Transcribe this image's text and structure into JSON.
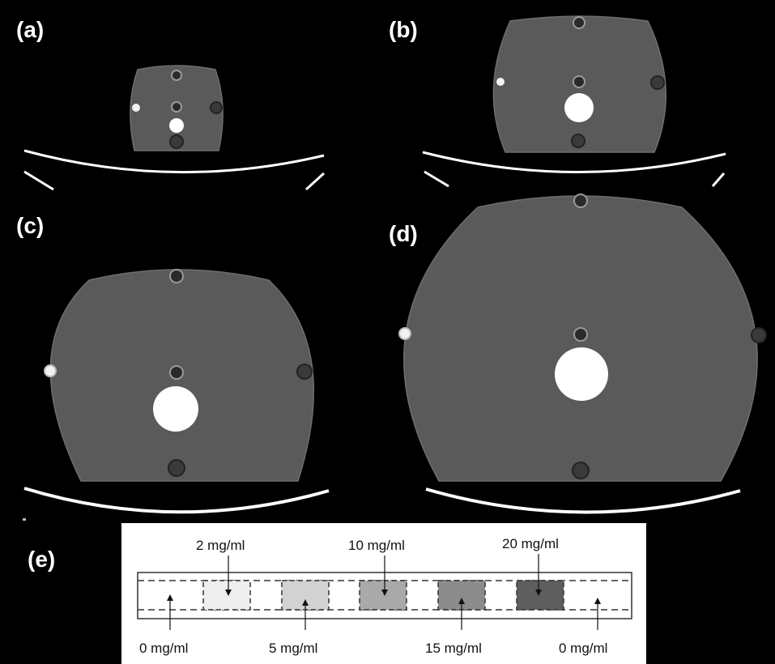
{
  "panels": {
    "a": {
      "label": "(a)"
    },
    "b": {
      "label": "(b)"
    },
    "c": {
      "label": "(c)"
    },
    "d": {
      "label": "(d)"
    },
    "e": {
      "label": "(e)"
    }
  },
  "colors": {
    "background": "#000000",
    "phantom": "#5a5a5a",
    "insert_bright": "#ffffff",
    "table_line": "#ffffff"
  },
  "insert_strip": {
    "top_labels": [
      "2 mg/ml",
      "10 mg/ml",
      "20 mg/ml"
    ],
    "bottom_labels": [
      "0 mg/ml",
      "5 mg/ml",
      "15 mg/ml",
      "0 mg/ml"
    ],
    "concentrations": [
      {
        "value": 2,
        "color": "#eeeeee"
      },
      {
        "value": 5,
        "color": "#d2d2d2"
      },
      {
        "value": 10,
        "color": "#a9a9a9"
      },
      {
        "value": 15,
        "color": "#8c8c8c"
      },
      {
        "value": 20,
        "color": "#5e5e5e"
      }
    ]
  }
}
